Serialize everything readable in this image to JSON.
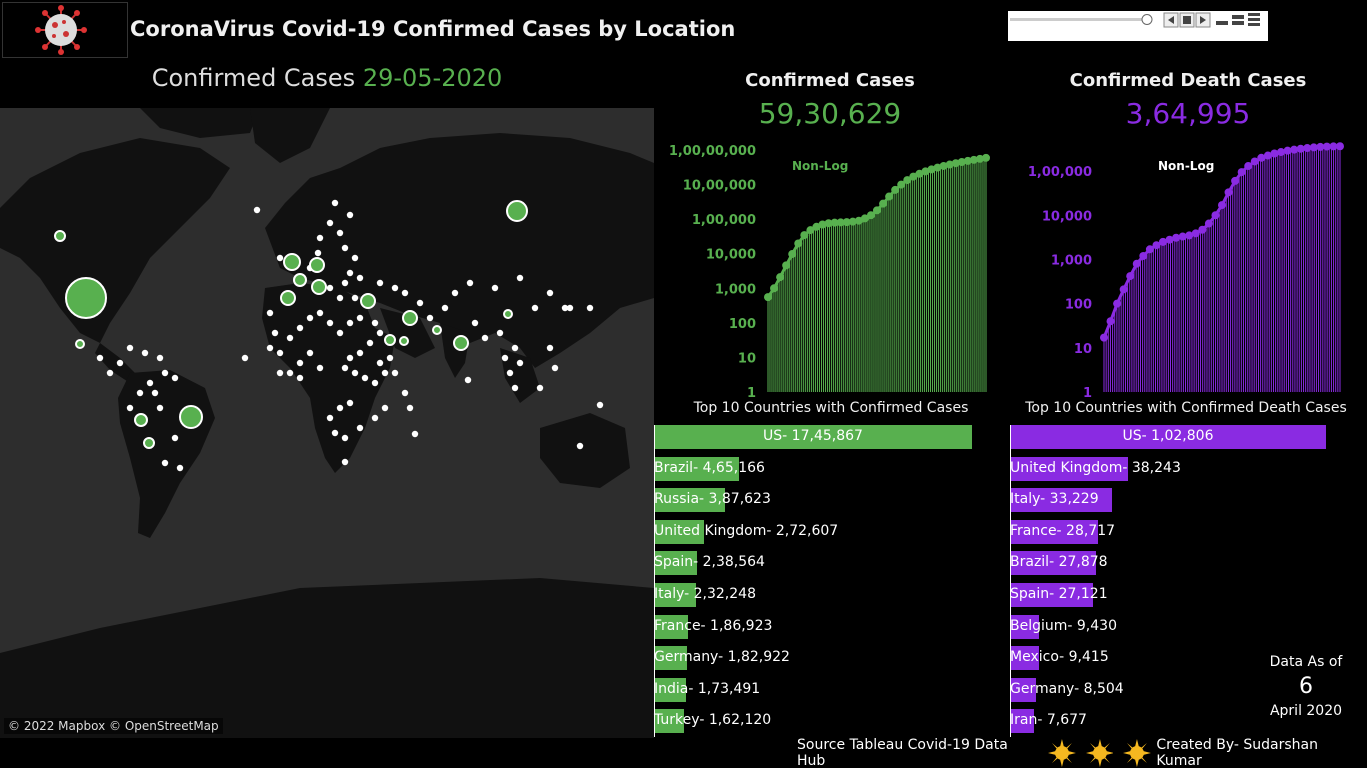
{
  "header": {
    "title": "CoronaVirus Covid-19 Confirmed Cases by Location",
    "logo_icon": "virus-icon"
  },
  "map": {
    "title_prefix": "Confirmed Cases",
    "date": "29-05-2020",
    "attribution": "© 2022 Mapbox © OpenStreetMap",
    "land_color": "#111111",
    "water_color": "#2d2d2d",
    "bubble_color": "#58b04f"
  },
  "kpi": {
    "confirmed": {
      "label": "Confirmed Cases",
      "value": "59,30,629",
      "color": "#58b04f"
    },
    "deaths": {
      "label": "Confirmed Death Cases",
      "value": "3,64,995",
      "color": "#8a2be2"
    }
  },
  "chart_data": [
    {
      "type": "area",
      "name": "confirmed-cumulative",
      "annotation": "Non-Log",
      "yscale": "log",
      "ylim": [
        1,
        10000000
      ],
      "yticks": [
        "1",
        "10",
        "100",
        "1,000",
        "10,000",
        "1,00,000",
        "10,00,000",
        "1,00,00,000"
      ],
      "color": "#58b04f",
      "values": [
        555,
        1000,
        2100,
        4600,
        9800,
        19800,
        34500,
        48000,
        60000,
        70000,
        76000,
        79000,
        80500,
        82000,
        84500,
        90000,
        105000,
        130000,
        180000,
        280000,
        450000,
        700000,
        1000000,
        1350000,
        1700000,
        2050000,
        2400000,
        2750000,
        3100000,
        3450000,
        3800000,
        4150000,
        4500000,
        4850000,
        5200000,
        5550000,
        5930629
      ]
    },
    {
      "type": "area",
      "name": "deaths-cumulative",
      "annotation": "Non-Log",
      "yscale": "log",
      "ylim": [
        1,
        300000
      ],
      "yticks": [
        "1",
        "10",
        "100",
        "1,000",
        "10,000",
        "1,00,000"
      ],
      "color": "#8a2be2",
      "values": [
        17,
        40,
        100,
        210,
        420,
        800,
        1200,
        1700,
        2100,
        2500,
        2800,
        3100,
        3300,
        3500,
        3900,
        4700,
        6500,
        10000,
        17000,
        33000,
        60000,
        95000,
        130000,
        165000,
        200000,
        225000,
        250000,
        270000,
        290000,
        305000,
        320000,
        332000,
        343000,
        352000,
        358000,
        362000,
        364995
      ]
    },
    {
      "type": "bar",
      "name": "top10-confirmed",
      "title": "Top 10 Countries with Confirmed Cases",
      "color": "#58b04f",
      "categories": [
        "US",
        "Brazil",
        "Russia",
        "United Kingdom",
        "Spain",
        "Italy",
        "France",
        "Germany",
        "India",
        "Turkey"
      ],
      "values": [
        1745867,
        465166,
        387623,
        272607,
        238564,
        232248,
        186923,
        182922,
        173491,
        162120
      ],
      "labels": [
        "US- 17,45,867",
        "Brazil- 4,65,166",
        "Russia- 3,87,623",
        "United Kingdom- 2,72,607",
        "Spain- 2,38,564",
        "Italy- 2,32,248",
        "France- 1,86,923",
        "Germany- 1,82,922",
        "India- 1,73,491",
        "Turkey- 1,62,120"
      ]
    },
    {
      "type": "bar",
      "name": "top10-deaths",
      "title": "Top 10 Countries with Confirmed Death Cases",
      "color": "#8a2be2",
      "categories": [
        "US",
        "United Kingdom",
        "Italy",
        "France",
        "Brazil",
        "Spain",
        "Belgium",
        "Mexico",
        "Germany",
        "Iran"
      ],
      "values": [
        102806,
        38243,
        33229,
        28717,
        27878,
        27121,
        9430,
        9415,
        8504,
        7677
      ],
      "labels": [
        "US- 1,02,806",
        "United Kingdom- 38,243",
        "Italy- 33,229",
        "France- 28,717",
        "Brazil- 27,878",
        "Spain- 27,121",
        "Belgium- 9,430",
        "Mexico- 9,415",
        "Germany- 8,504",
        "Iran- 7,677"
      ]
    }
  ],
  "as_of": {
    "label": "Data As of",
    "day": "6",
    "month_year": "April 2020"
  },
  "footer": {
    "source": "Source Tableau Covid-19 Data Hub",
    "credit": "Created By- Sudarshan Kumar",
    "sun_color": "#f5b820"
  }
}
